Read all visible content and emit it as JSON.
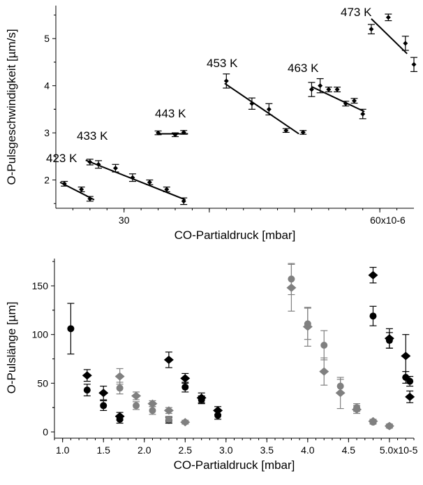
{
  "chart_data": [
    {
      "type": "scatter",
      "xlabel": "CO-Partialdruck [mbar]",
      "ylabel": "O-Pulsgeschwindigkeit [µm/s]",
      "xlim": [
        2.2e-05,
        6.4e-05
      ],
      "ylim": [
        1.4,
        5.7
      ],
      "x_ticks": [
        {
          "value": 3e-05,
          "label": "30"
        },
        {
          "value": 4e-05,
          "label": ""
        },
        {
          "value": 5e-05,
          "label": ""
        },
        {
          "value": 6e-05,
          "label": "60x10-6"
        }
      ],
      "y_ticks": [
        {
          "value": 2,
          "label": "2"
        },
        {
          "value": 3,
          "label": "3"
        },
        {
          "value": 4,
          "label": "4"
        },
        {
          "value": 5,
          "label": "5"
        }
      ],
      "series": [
        {
          "name": "423 K",
          "points": [
            [
              2.3e-05,
              1.92,
              0.05
            ],
            [
              2.5e-05,
              1.8,
              0.05
            ],
            [
              2.6e-05,
              1.6,
              0.05
            ]
          ],
          "fit": [
            [
              2.25e-05,
              1.95
            ],
            [
              2.65e-05,
              1.58
            ]
          ]
        },
        {
          "name": "433 K",
          "points": [
            [
              2.6e-05,
              2.38,
              0.06
            ],
            [
              2.7e-05,
              2.33,
              0.08
            ],
            [
              2.9e-05,
              2.25,
              0.08
            ],
            [
              3.1e-05,
              2.05,
              0.08
            ],
            [
              3.3e-05,
              1.95,
              0.05
            ],
            [
              3.5e-05,
              1.8,
              0.05
            ],
            [
              3.7e-05,
              1.55,
              0.07
            ]
          ],
          "fit": [
            [
              2.55e-05,
              2.42
            ],
            [
              3.72e-05,
              1.58
            ]
          ]
        },
        {
          "name": "443 K",
          "points": [
            [
              3.4e-05,
              3.0,
              0.04
            ],
            [
              3.6e-05,
              2.96,
              0.04
            ],
            [
              3.7e-05,
              3.01,
              0.04
            ]
          ],
          "fit": [
            [
              3.4e-05,
              2.98
            ],
            [
              3.75e-05,
              2.98
            ]
          ]
        },
        {
          "name": "453 K",
          "points": [
            [
              4.2e-05,
              4.1,
              0.15
            ],
            [
              4.5e-05,
              3.62,
              0.12
            ],
            [
              4.7e-05,
              3.5,
              0.12
            ],
            [
              4.9e-05,
              3.05,
              0.04
            ],
            [
              5.1e-05,
              3.01,
              0.04
            ]
          ],
          "fit": [
            [
              4.18e-05,
              4.05
            ],
            [
              5.05e-05,
              2.98
            ]
          ]
        },
        {
          "name": "463 K",
          "points": [
            [
              5.2e-05,
              3.92,
              0.15
            ],
            [
              5.3e-05,
              4.0,
              0.15
            ],
            [
              5.4e-05,
              3.92,
              0.05
            ],
            [
              5.5e-05,
              3.92,
              0.05
            ],
            [
              5.6e-05,
              3.62,
              0.05
            ],
            [
              5.7e-05,
              3.68,
              0.05
            ],
            [
              5.8e-05,
              3.4,
              0.1
            ]
          ],
          "fit": [
            [
              5.2e-05,
              3.98
            ],
            [
              5.82e-05,
              3.45
            ]
          ]
        },
        {
          "name": "473 K",
          "points": [
            [
              5.9e-05,
              5.2,
              0.1
            ],
            [
              6.1e-05,
              5.45,
              0.07
            ],
            [
              6.3e-05,
              4.9,
              0.15
            ],
            [
              6.4e-05,
              4.45,
              0.15
            ]
          ],
          "fit": [
            [
              5.9e-05,
              5.42
            ],
            [
              6.32e-05,
              4.68
            ]
          ]
        }
      ]
    },
    {
      "type": "scatter",
      "xlabel": "CO-Partialdruck [mbar]",
      "ylabel": "O-Pulslänge [µm]",
      "xlim": [
        9e-06,
        5.3e-05
      ],
      "ylim": [
        -5,
        178
      ],
      "x_ticks": [
        {
          "value": 1e-05,
          "label": "1.0"
        },
        {
          "value": 1.5e-05,
          "label": "1.5"
        },
        {
          "value": 2e-05,
          "label": "2.0"
        },
        {
          "value": 2.5e-05,
          "label": "2.5"
        },
        {
          "value": 3e-05,
          "label": "3.0"
        },
        {
          "value": 3.5e-05,
          "label": "3.5"
        },
        {
          "value": 4e-05,
          "label": "4.0"
        },
        {
          "value": 4.5e-05,
          "label": "4.5"
        },
        {
          "value": 5e-05,
          "label": "5.0x10-5"
        }
      ],
      "y_ticks": [
        {
          "value": 0,
          "label": "0"
        },
        {
          "value": 50,
          "label": "50"
        },
        {
          "value": 100,
          "label": "100"
        },
        {
          "value": 150,
          "label": "150"
        }
      ],
      "series": [
        {
          "marker": "circle",
          "color": "#000000",
          "points": [
            [
              1.1e-05,
              106,
              26
            ],
            [
              1.3e-05,
              43,
              6
            ],
            [
              1.5e-05,
              27,
              5
            ],
            [
              1.7e-05,
              13,
              4
            ],
            [
              2.3e-05,
              12,
              3
            ],
            [
              2.5e-05,
              46,
              5
            ],
            [
              2.7e-05,
              33,
              4
            ],
            [
              2.9e-05,
              17,
              4
            ],
            [
              4.8e-05,
              119,
              10
            ],
            [
              5e-05,
              94,
              8
            ],
            [
              5.2e-05,
              56,
              6
            ],
            [
              5.25e-05,
              52,
              5
            ]
          ]
        },
        {
          "marker": "diamond",
          "color": "#000000",
          "points": [
            [
              1.3e-05,
              58,
              6
            ],
            [
              1.5e-05,
              40,
              7
            ],
            [
              1.7e-05,
              16,
              4
            ],
            [
              2.3e-05,
              74,
              8
            ],
            [
              2.5e-05,
              55,
              5
            ],
            [
              2.7e-05,
              35,
              5
            ],
            [
              2.9e-05,
              22,
              4
            ],
            [
              4.8e-05,
              161,
              8
            ],
            [
              5e-05,
              96,
              10
            ],
            [
              5.2e-05,
              78,
              22
            ],
            [
              5.25e-05,
              36,
              6
            ]
          ]
        },
        {
          "marker": "circle",
          "color": "#808080",
          "points": [
            [
              1.7e-05,
              45,
              6
            ],
            [
              1.9e-05,
              27,
              4
            ],
            [
              2.1e-05,
              22,
              4
            ],
            [
              2.3e-05,
              13,
              3
            ],
            [
              3.8e-05,
              157,
              16
            ],
            [
              4e-05,
              111,
              16
            ],
            [
              4.2e-05,
              89,
              15
            ],
            [
              4.4e-05,
              47,
              7
            ],
            [
              4.6e-05,
              25,
              4
            ],
            [
              4.8e-05,
              10,
              2
            ],
            [
              5e-05,
              6,
              2
            ]
          ]
        },
        {
          "marker": "diamond",
          "color": "#808080",
          "points": [
            [
              1.7e-05,
              57,
              8
            ],
            [
              1.9e-05,
              37,
              4
            ],
            [
              2.1e-05,
              29,
              3
            ],
            [
              2.3e-05,
              22,
              3
            ],
            [
              2.5e-05,
              10,
              2
            ],
            [
              3.8e-05,
              148,
              24
            ],
            [
              4e-05,
              108,
              20
            ],
            [
              4.2e-05,
              62,
              14
            ],
            [
              4.4e-05,
              40,
              16
            ],
            [
              4.6e-05,
              23,
              4
            ],
            [
              4.8e-05,
              11,
              2
            ],
            [
              5e-05,
              6,
              2
            ]
          ]
        }
      ]
    }
  ]
}
